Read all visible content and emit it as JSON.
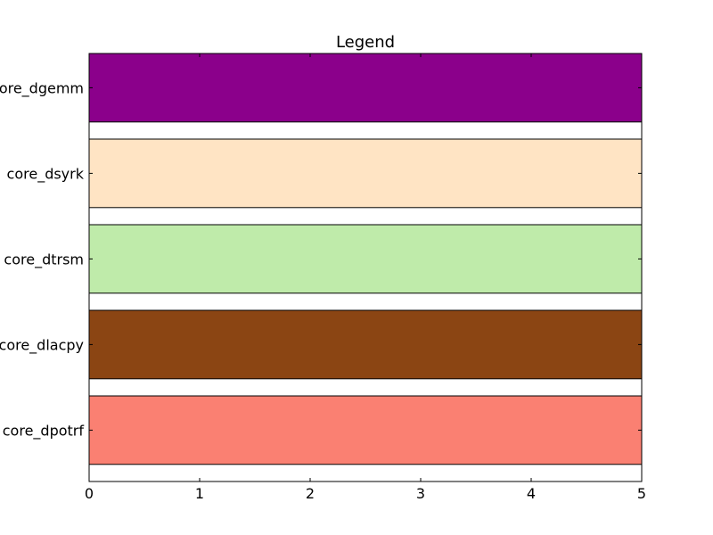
{
  "chart_data": {
    "type": "bar",
    "orientation": "horizontal",
    "title": "Legend",
    "xlabel": "",
    "ylabel": "",
    "xlim": [
      0,
      5
    ],
    "xticks": [
      "0",
      "1",
      "2",
      "3",
      "4",
      "5"
    ],
    "grid": false,
    "categories": [
      "core_dgemm",
      "core_dsyrk",
      "core_dtrsm",
      "core_dlacpy",
      "core_dpotrf"
    ],
    "values": [
      5,
      5,
      5,
      5,
      5
    ],
    "colors": [
      "#8b008b",
      "#ffe4c4",
      "#bfebaa",
      "#8b4513",
      "#fa8072"
    ]
  }
}
